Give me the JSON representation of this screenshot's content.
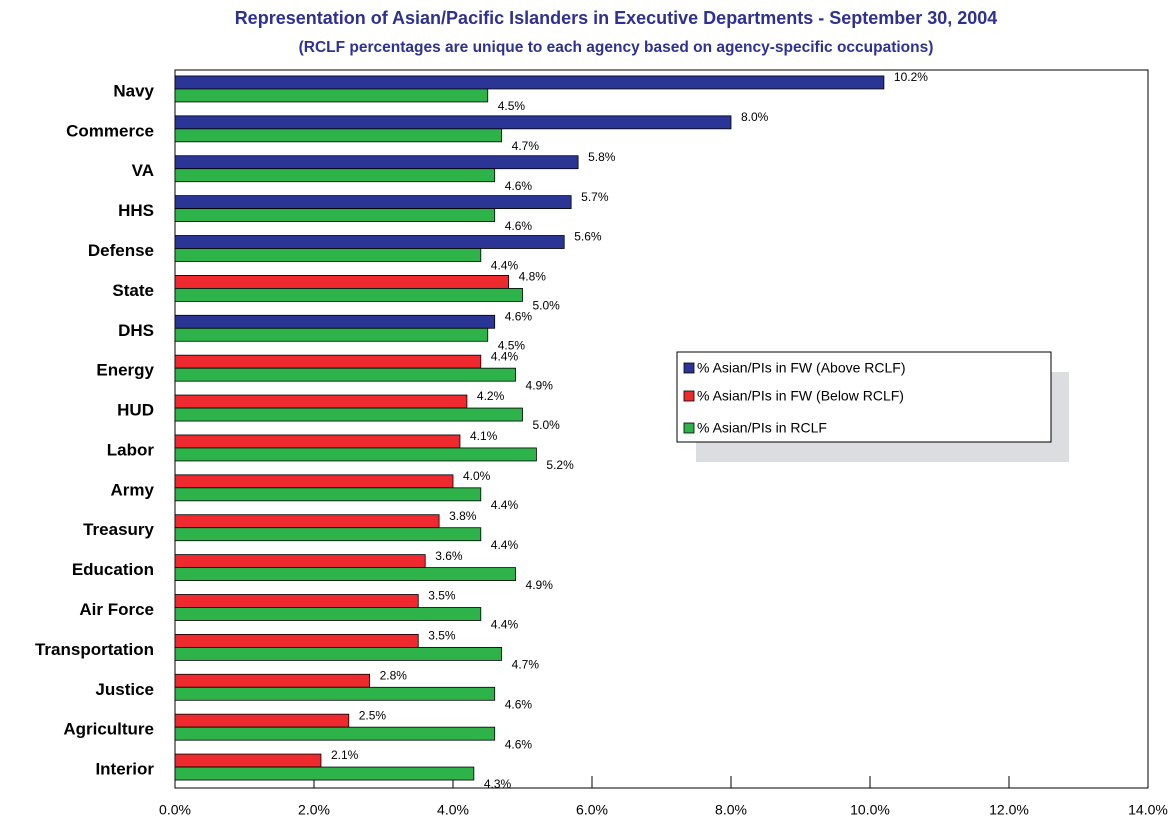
{
  "chart_data": {
    "type": "hbar",
    "title": "Representation of Asian/Pacific Islanders in Executive Departments - September 30, 2004",
    "subtitle": "(RCLF percentages are unique to each agency based on agency-specific occupations)",
    "categories": [
      "Navy",
      "Commerce",
      "VA",
      "HHS",
      "Defense",
      "State",
      "DHS",
      "Energy",
      "HUD",
      "Labor",
      "Army",
      "Treasury",
      "Education",
      "Air Force",
      "Transportation",
      "Justice",
      "Agriculture",
      "Interior"
    ],
    "series": [
      {
        "name": "% Asian/PIs in FW (Above RCLF)",
        "color": "#2b3595",
        "values": [
          10.2,
          8.0,
          5.8,
          5.7,
          5.6,
          null,
          4.6,
          null,
          null,
          null,
          null,
          null,
          null,
          null,
          null,
          null,
          null,
          null
        ],
        "value_labels": [
          "10.2%",
          "8.0%",
          "5.8%",
          "5.7%",
          "5.6%",
          null,
          "4.6%",
          null,
          null,
          null,
          null,
          null,
          null,
          null,
          null,
          null,
          null,
          null
        ]
      },
      {
        "name": "% Asian/PIs in FW  (Below RCLF)",
        "color": "#ee2a2f",
        "values": [
          null,
          null,
          null,
          null,
          null,
          4.8,
          null,
          4.4,
          4.2,
          4.1,
          4.0,
          3.8,
          3.6,
          3.5,
          3.5,
          2.8,
          2.5,
          2.1
        ],
        "value_labels": [
          null,
          null,
          null,
          null,
          null,
          "4.8%",
          null,
          "4.4%",
          "4.2%",
          "4.1%",
          "4.0%",
          "3.8%",
          "3.6%",
          "3.5%",
          "3.5%",
          "2.8%",
          "2.5%",
          "2.1%"
        ]
      },
      {
        "name": "% Asian/PIs in RCLF",
        "color": "#2db34a",
        "values": [
          4.5,
          4.7,
          4.6,
          4.6,
          4.4,
          5.0,
          4.5,
          4.9,
          5.0,
          5.2,
          4.4,
          4.4,
          4.9,
          4.4,
          4.7,
          4.6,
          4.6,
          4.3
        ],
        "value_labels": [
          "4.5%",
          "4.7%",
          "4.6%",
          "4.6%",
          "4.4%",
          "5.0%",
          "4.5%",
          "4.9%",
          "5.0%",
          "5.2%",
          "4.4%",
          "4.4%",
          "4.9%",
          "4.4%",
          "4.7%",
          "4.6%",
          "4.6%",
          "4.3%"
        ]
      }
    ],
    "xlim": [
      0,
      14
    ],
    "xticks": [
      {
        "value": 0,
        "label": "0.0%"
      },
      {
        "value": 2,
        "label": "2.0%"
      },
      {
        "value": 4,
        "label": "4.0%"
      },
      {
        "value": 6,
        "label": "6.0%"
      },
      {
        "value": 8,
        "label": "8.0%"
      },
      {
        "value": 10,
        "label": "10.0%"
      },
      {
        "value": 12,
        "label": "12.0%"
      },
      {
        "value": 14,
        "label": "14.0%"
      }
    ],
    "grid": false
  }
}
